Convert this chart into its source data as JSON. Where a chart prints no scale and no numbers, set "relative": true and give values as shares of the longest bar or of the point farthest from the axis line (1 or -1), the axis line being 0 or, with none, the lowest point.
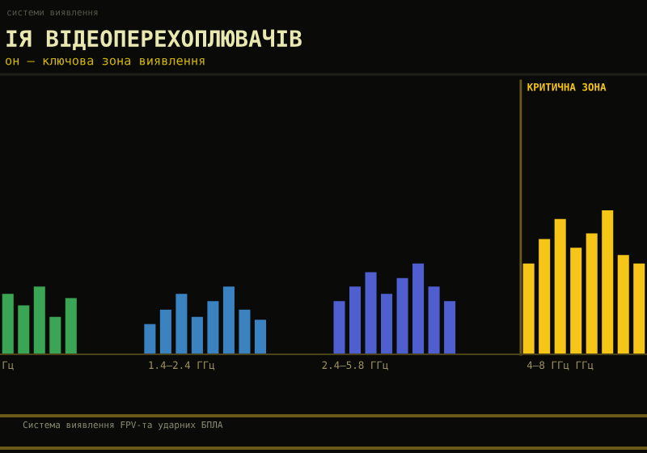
{
  "chart_data": {
    "type": "bar",
    "relative": true,
    "title": "ІЯ ВІДЕОПЕРЕХОПЛЮВАЧІВ",
    "subtitle": "он — ключова зона виявлення",
    "categories": [
      "Гц",
      null,
      null,
      null,
      null,
      null,
      null,
      null,
      null,
      null,
      null,
      "1.4–2.4 ГГц",
      null,
      null,
      null,
      null,
      null,
      null,
      null,
      null,
      null,
      null,
      "2.4–5.8 ГГц",
      null,
      null,
      null,
      null,
      null,
      null,
      null,
      null,
      null,
      null,
      null,
      null,
      "4–8 ГГц ГГц",
      null,
      null,
      null,
      null,
      null
    ],
    "values": [
      0.42,
      0.34,
      0.47,
      0.26,
      0.39,
      null,
      null,
      null,
      null,
      0.21,
      0.31,
      0.42,
      0.26,
      0.37,
      0.47,
      0.31,
      0.24,
      null,
      null,
      null,
      null,
      0.37,
      0.47,
      0.57,
      0.42,
      0.53,
      0.63,
      0.47,
      0.37,
      null,
      null,
      null,
      null,
      0.63,
      0.8,
      0.94,
      0.74,
      0.84,
      1,
      0.69,
      0.63
    ],
    "colors": [
      "#3aa655",
      "#3aa655",
      "#3aa655",
      "#3aa655",
      "#3aa655",
      null,
      null,
      null,
      null,
      "#3a82c0",
      "#3a82c0",
      "#3a82c0",
      "#3a82c0",
      "#3a82c0",
      "#3a82c0",
      "#3a82c0",
      "#3a82c0",
      null,
      null,
      null,
      null,
      "#4f5fcf",
      "#4f5fcf",
      "#4f5fcf",
      "#4f5fcf",
      "#4f5fcf",
      "#4f5fcf",
      "#4f5fcf",
      "#4f5fcf",
      null,
      null,
      null,
      null,
      "#f5c518",
      "#f5c518",
      "#f5c518",
      "#f5c518",
      "#f5c518",
      "#f5c518",
      "#f5c518",
      "#f5c518"
    ],
    "annotations": [
      "системи виявлення",
      "Система виявлення FPV-та ударних БПЛА",
      "КРИТИЧНА ЗОНА"
    ]
  }
}
